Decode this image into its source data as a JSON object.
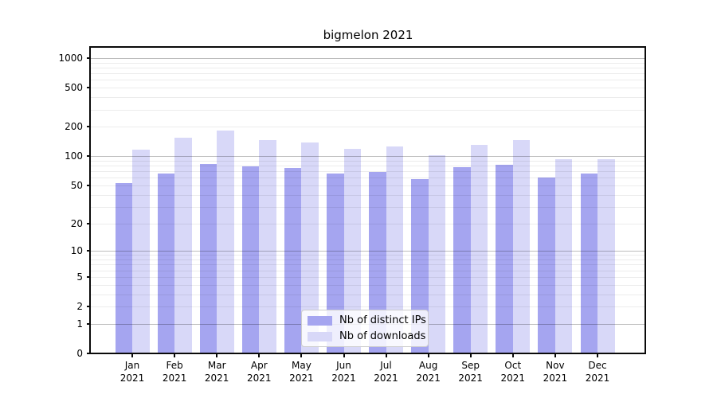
{
  "chart_data": {
    "type": "bar",
    "title": "bigmelon 2021",
    "categories": [
      "Jan",
      "Feb",
      "Mar",
      "Apr",
      "May",
      "Jun",
      "Jul",
      "Aug",
      "Sep",
      "Oct",
      "Nov",
      "Dec"
    ],
    "year_suffix": "2021",
    "series": [
      {
        "name": "Nb of distinct IPs",
        "color": "#a5a5f0",
        "values": [
          53,
          66,
          83,
          78,
          76,
          66,
          69,
          58,
          77,
          82,
          60,
          66
        ]
      },
      {
        "name": "Nb of downloads",
        "color": "#d8d8f8",
        "values": [
          117,
          155,
          183,
          146,
          137,
          119,
          125,
          103,
          131,
          147,
          93,
          94
        ]
      }
    ],
    "xlabel": "",
    "ylabel": "",
    "yscale": "log1p",
    "ylim": [
      0,
      1275
    ],
    "ytick_labels": [
      "1000",
      "500",
      "200",
      "100",
      "50",
      "20",
      "10",
      "5",
      "2",
      "1",
      "0"
    ],
    "ytick_values": [
      1000,
      500,
      200,
      100,
      50,
      20,
      10,
      5,
      2,
      1,
      0
    ],
    "grid": {
      "orientation": "horizontal",
      "major_values": [
        1,
        10,
        100,
        1000
      ],
      "minor_values": [
        2,
        3,
        4,
        5,
        6,
        7,
        8,
        9,
        20,
        30,
        40,
        50,
        60,
        70,
        80,
        90,
        200,
        300,
        400,
        500,
        600,
        700,
        800,
        900
      ]
    },
    "legend_position": "lower center"
  }
}
